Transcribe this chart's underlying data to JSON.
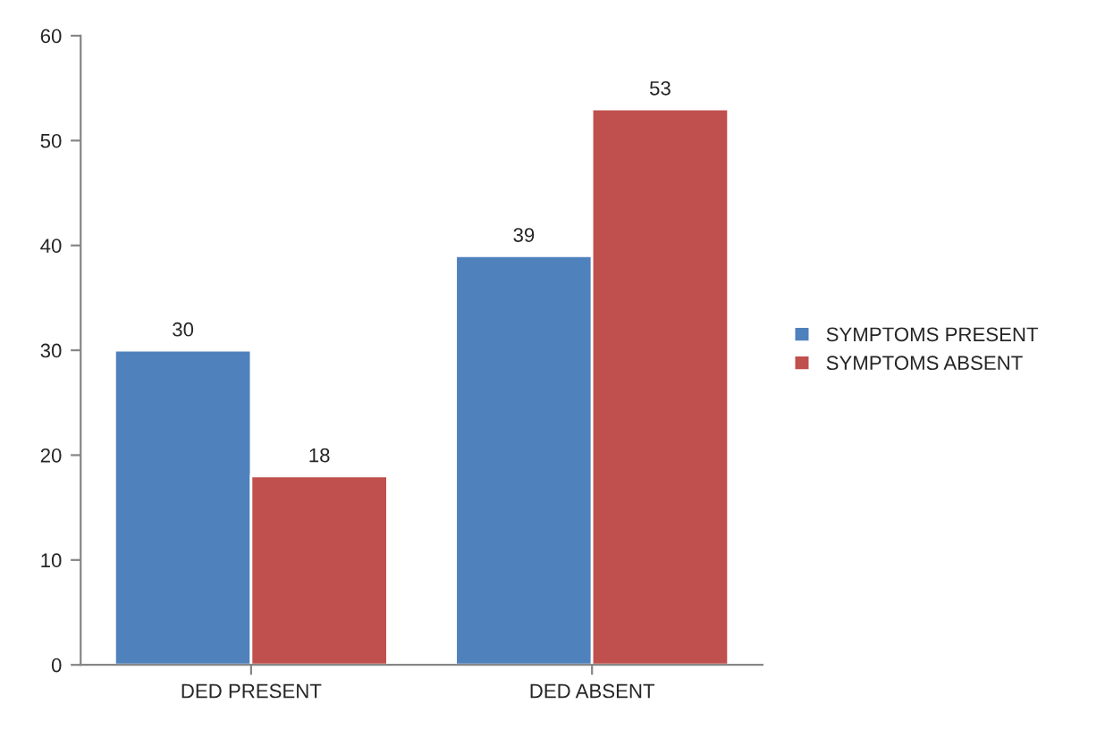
{
  "chart_data": {
    "type": "bar",
    "categories": [
      "DED PRESENT",
      "DED ABSENT"
    ],
    "series": [
      {
        "name": "SYMPTOMS PRESENT",
        "color": "#4f81bd",
        "values": [
          30,
          39
        ]
      },
      {
        "name": "SYMPTOMS ABSENT",
        "color": "#c0504d",
        "values": [
          18,
          53
        ]
      }
    ],
    "ylim": [
      0,
      60
    ],
    "yticks": [
      0,
      10,
      20,
      30,
      40,
      50,
      60
    ],
    "data_labels": true,
    "legend": "right",
    "grid": false
  }
}
